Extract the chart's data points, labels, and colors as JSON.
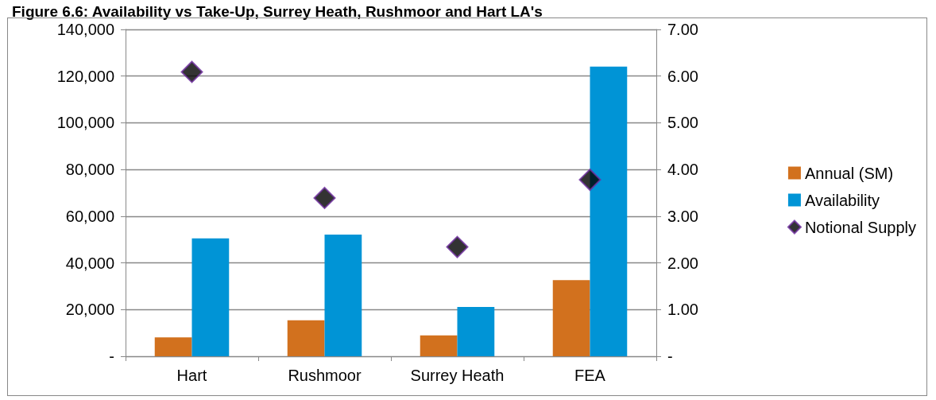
{
  "chart_data": {
    "type": "bar",
    "title": "Figure 6.6: Availability vs Take-Up, Surrey Heath, Rushmoor and Hart LA's",
    "categories": [
      "Hart",
      "Rushmoor",
      "Surrey Heath",
      "FEA"
    ],
    "series": [
      {
        "name": "Annual (SM)",
        "color": "#d2711e",
        "values": [
          8100,
          15400,
          8900,
          32600
        ]
      },
      {
        "name": "Availability",
        "color": "#0094d6",
        "values": [
          50500,
          52100,
          21100,
          124100
        ]
      },
      {
        "name": "Notional Supply",
        "type": "scatter",
        "axis": "y2",
        "color": "#000000",
        "values": [
          6.09,
          3.39,
          2.34,
          3.78
        ]
      }
    ],
    "ylim": [
      0,
      140000
    ],
    "yticks": [
      {
        "value": 0,
        "label": "-"
      },
      {
        "value": 20000,
        "label": "20,000"
      },
      {
        "value": 40000,
        "label": "40,000"
      },
      {
        "value": 60000,
        "label": "60,000"
      },
      {
        "value": 80000,
        "label": "80,000"
      },
      {
        "value": 100000,
        "label": "100,000"
      },
      {
        "value": 120000,
        "label": "120,000"
      },
      {
        "value": 140000,
        "label": "140,000"
      }
    ],
    "y2lim": [
      0,
      7
    ],
    "y2ticks": [
      {
        "value": 0,
        "label": "-"
      },
      {
        "value": 1,
        "label": "1.00"
      },
      {
        "value": 2,
        "label": "2.00"
      },
      {
        "value": 3,
        "label": "3.00"
      },
      {
        "value": 4,
        "label": "4.00"
      },
      {
        "value": 5,
        "label": "5.00"
      },
      {
        "value": 6,
        "label": "6.00"
      },
      {
        "value": 7,
        "label": "7.00"
      }
    ],
    "grid": "y",
    "legend": "right",
    "marker": "diamond"
  }
}
